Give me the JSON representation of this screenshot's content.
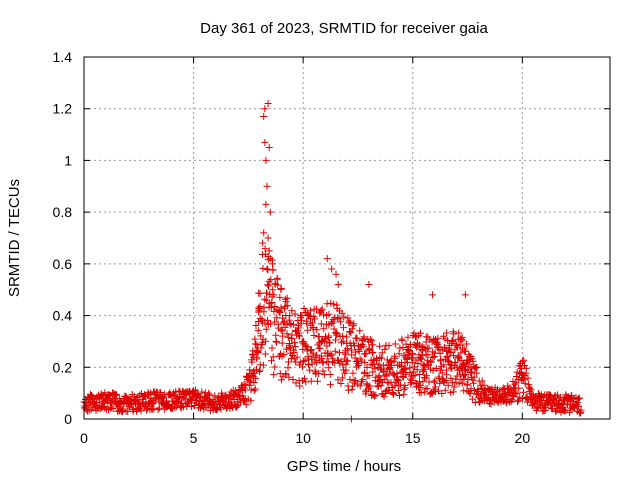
{
  "chart_data": {
    "type": "scatter",
    "title": "Day 361 of 2023, SRMTID for receiver gaia",
    "xlabel": "GPS time / hours",
    "ylabel": "SRMTID / TECUs",
    "xlim": [
      0,
      24
    ],
    "ylim": [
      0,
      1.4
    ],
    "x_ticks": [
      0,
      5,
      10,
      15,
      20
    ],
    "x_tick_labels": [
      "0",
      "5",
      "10",
      "15",
      "20"
    ],
    "y_ticks": [
      0,
      0.2,
      0.4,
      0.6,
      0.8,
      1.0,
      1.2,
      1.4
    ],
    "y_tick_labels": [
      "0",
      "0.2",
      "0.4",
      "0.6",
      "0.8",
      "1",
      "1.2",
      "1.4"
    ],
    "grid": true,
    "marker": "+",
    "series": [
      {
        "name": "SRMTID",
        "color": "#e00000",
        "profile_x": [
          0,
          1,
          2,
          3,
          4,
          5,
          6,
          7,
          7.5,
          7.8,
          8.0,
          8.3,
          8.5,
          9,
          9.5,
          10,
          11,
          11.5,
          12,
          13,
          14,
          15,
          16,
          17,
          17.5,
          18,
          18.5,
          19,
          19.5,
          20,
          20.5,
          21,
          22,
          22.7
        ],
        "profile_y": [
          0.06,
          0.07,
          0.06,
          0.07,
          0.07,
          0.08,
          0.06,
          0.08,
          0.12,
          0.2,
          0.35,
          0.45,
          0.4,
          0.33,
          0.26,
          0.27,
          0.28,
          0.3,
          0.25,
          0.2,
          0.18,
          0.22,
          0.2,
          0.22,
          0.18,
          0.12,
          0.08,
          0.1,
          0.09,
          0.16,
          0.07,
          0.06,
          0.06,
          0.05
        ],
        "outliers_x": [
          8.2,
          8.25,
          8.3,
          8.35,
          8.4,
          8.45,
          8.5,
          8.3,
          8.25,
          8.4,
          8.35,
          8.45,
          8.2,
          8.5,
          8.15,
          8.6,
          11.1,
          11.3,
          11.5,
          11.6,
          13.0,
          15.9,
          17.4,
          12.2
        ],
        "outliers_y": [
          1.17,
          1.2,
          1.0,
          0.9,
          1.22,
          1.05,
          0.8,
          0.83,
          1.07,
          0.7,
          0.58,
          0.65,
          0.72,
          0.62,
          0.68,
          0.6,
          0.62,
          0.58,
          0.56,
          0.52,
          0.52,
          0.48,
          0.48,
          0.0
        ]
      }
    ]
  }
}
